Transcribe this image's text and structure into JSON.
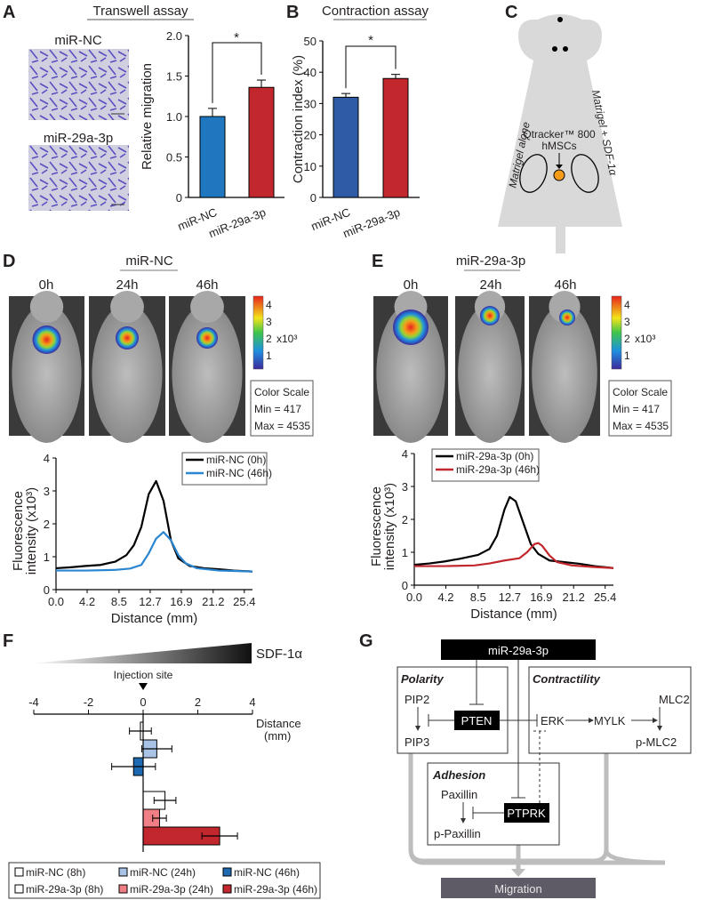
{
  "panels": {
    "A": "A",
    "B": "B",
    "C": "C",
    "D": "D",
    "E": "E",
    "F": "F",
    "G": "G"
  },
  "A": {
    "title": "Transwell assay",
    "image_labels": [
      "miR-NC",
      "miR-29a-3p"
    ],
    "significance": "*"
  },
  "B": {
    "title": "Contraction assay",
    "significance": "*"
  },
  "C": {
    "qtracker": "Qtracker™ 800",
    "hmscs": "hMSCs",
    "left_label": "Matrigel alone",
    "right_label": "Matrigel + SDF-1α"
  },
  "D": {
    "header": "miR-NC",
    "times": [
      "0h",
      "24h",
      "46h"
    ],
    "colorbar": {
      "ticks": [
        "4",
        "3",
        "2",
        "1"
      ],
      "unit": "x10³"
    },
    "scale": {
      "title": "Color Scale",
      "min": "Min = 417",
      "max": "Max = 4535"
    }
  },
  "E": {
    "header": "miR-29a-3p",
    "times": [
      "0h",
      "24h",
      "46h"
    ],
    "colorbar": {
      "ticks": [
        "4",
        "3",
        "2",
        "1"
      ],
      "unit": "x10³"
    },
    "scale": {
      "title": "Color Scale",
      "min": "Min = 417",
      "max": "Max = 4535"
    }
  },
  "F": {
    "gradient_label": "SDF-1α",
    "injection_label": "Injection site"
  },
  "G": {
    "mirna": "miR-29a-3p",
    "polarity": "Polarity",
    "pip2": "PIP2",
    "pip3": "PIP3",
    "pten": "PTEN",
    "contractility": "Contractility",
    "erk": "ERK",
    "mylk": "MYLK",
    "mlc2": "MLC2",
    "pmlc2": "p-MLC2",
    "adhesion": "Adhesion",
    "paxillin": "Paxillin",
    "ppaxillin": "p-Paxillin",
    "ptprk": "PTPRK",
    "migration": "Migration"
  },
  "colors": {
    "blue": "#1f77c0",
    "red": "#c1272d",
    "blue_b": "#2f5ba6",
    "light_blue": "#a8c3e6",
    "pink": "#ef7f84",
    "dark_blue": "#1d6ab3",
    "dark_red": "#c1272d"
  },
  "chart_data": [
    {
      "id": "A",
      "type": "bar",
      "categories": [
        "miR-NC",
        "miR-29a-3p"
      ],
      "values": [
        1.0,
        1.36
      ],
      "errors": [
        0.1,
        0.09
      ],
      "ylabel": "Relative migration",
      "ylim": [
        0,
        2
      ],
      "yticks": [
        "0",
        "0.5",
        "1.0",
        "1.5",
        "2.0"
      ]
    },
    {
      "id": "B",
      "type": "bar",
      "categories": [
        "miR-NC",
        "miR-29a-3p"
      ],
      "values": [
        32,
        38
      ],
      "errors": [
        1.2,
        1.3
      ],
      "ylabel": "Contraction index (%)",
      "ylim": [
        0,
        50
      ],
      "yticks": [
        "0",
        "10",
        "20",
        "30",
        "40",
        "50"
      ]
    },
    {
      "id": "D",
      "type": "line",
      "xlabel": "Distance (mm)",
      "ylabel": [
        "Fluorescence",
        "intensity (x10³)"
      ],
      "ylim": [
        0,
        4
      ],
      "xlim": [
        0,
        26.5
      ],
      "xticks": [
        "0.0",
        "4.2",
        "8.5",
        "12.7",
        "16.9",
        "21.2",
        "25.4"
      ],
      "yticks": [
        "0",
        "1",
        "2",
        "3",
        "4"
      ],
      "series": [
        {
          "name": "miR-NC (0h)",
          "color": "#000000",
          "x": [
            0,
            2,
            4,
            6,
            8,
            9.5,
            10.5,
            11.5,
            12.5,
            13.5,
            14.5,
            15.5,
            16.5,
            18,
            20,
            22,
            24,
            26.5
          ],
          "y": [
            0.65,
            0.68,
            0.72,
            0.75,
            0.85,
            1.05,
            1.35,
            1.9,
            2.9,
            3.3,
            2.7,
            1.5,
            0.95,
            0.72,
            0.65,
            0.62,
            0.58,
            0.55
          ]
        },
        {
          "name": "miR-NC (46h)",
          "color": "#2a86d0",
          "x": [
            0,
            4,
            8,
            10,
            11.5,
            12.5,
            13.5,
            14.5,
            15.5,
            16.5,
            17.5,
            19,
            22,
            26.5
          ],
          "y": [
            0.58,
            0.58,
            0.6,
            0.64,
            0.75,
            1.1,
            1.55,
            1.75,
            1.5,
            1.05,
            0.8,
            0.65,
            0.58,
            0.55
          ]
        }
      ]
    },
    {
      "id": "E",
      "type": "line",
      "xlabel": "Distance (mm)",
      "ylabel": [
        "Fluorescence",
        "intensity (x10³)"
      ],
      "ylim": [
        0,
        4
      ],
      "xlim": [
        0,
        26.5
      ],
      "xticks": [
        "0.0",
        "4.2",
        "8.5",
        "12.7",
        "16.9",
        "21.2",
        "25.4"
      ],
      "yticks": [
        "0",
        "1",
        "2",
        "3",
        "4"
      ],
      "series": [
        {
          "name": "miR-29a-3p (0h)",
          "color": "#000000",
          "x": [
            0,
            2,
            4,
            6,
            8.5,
            10,
            11,
            12,
            12.7,
            13.5,
            14.5,
            15.5,
            16.5,
            18,
            20,
            22,
            24,
            26.5
          ],
          "y": [
            0.62,
            0.66,
            0.72,
            0.8,
            0.92,
            1.1,
            1.5,
            2.3,
            2.68,
            2.55,
            1.9,
            1.25,
            0.95,
            0.75,
            0.7,
            0.65,
            0.58,
            0.52
          ]
        },
        {
          "name": "miR-29a-3p (46h)",
          "color": "#c1272d",
          "x": [
            0,
            4,
            8,
            10,
            12,
            14,
            15,
            16,
            16.5,
            17,
            18,
            19,
            21,
            24,
            26.5
          ],
          "y": [
            0.58,
            0.58,
            0.6,
            0.66,
            0.75,
            0.82,
            1.0,
            1.25,
            1.28,
            1.2,
            0.9,
            0.7,
            0.6,
            0.55,
            0.52
          ]
        }
      ]
    },
    {
      "id": "F",
      "type": "bar",
      "orientation": "horizontal",
      "xlabel": "Distance (mm)",
      "xlim": [
        -4,
        4
      ],
      "xticks": [
        "-4",
        "-2",
        "0",
        "2",
        "4"
      ],
      "series": [
        {
          "name": "miR-NC (8h)",
          "value": -0.1,
          "error": 0.4,
          "color": "#ffffff"
        },
        {
          "name": "miR-NC (24h)",
          "value": 0.5,
          "error": 0.55,
          "color": "#a8c3e6"
        },
        {
          "name": "miR-NC (46h)",
          "value": -0.35,
          "error": 0.8,
          "color": "#1d6ab3"
        },
        {
          "name": "miR-29a-3p (8h)",
          "value": 0.8,
          "error": 0.4,
          "color": "#ffffff"
        },
        {
          "name": "miR-29a-3p (24h)",
          "value": 0.6,
          "error": 0.25,
          "color": "#ef7f84"
        },
        {
          "name": "miR-29a-3p (46h)",
          "value": 2.8,
          "error": 0.65,
          "color": "#c1272d"
        }
      ],
      "legend": "bottom"
    }
  ]
}
